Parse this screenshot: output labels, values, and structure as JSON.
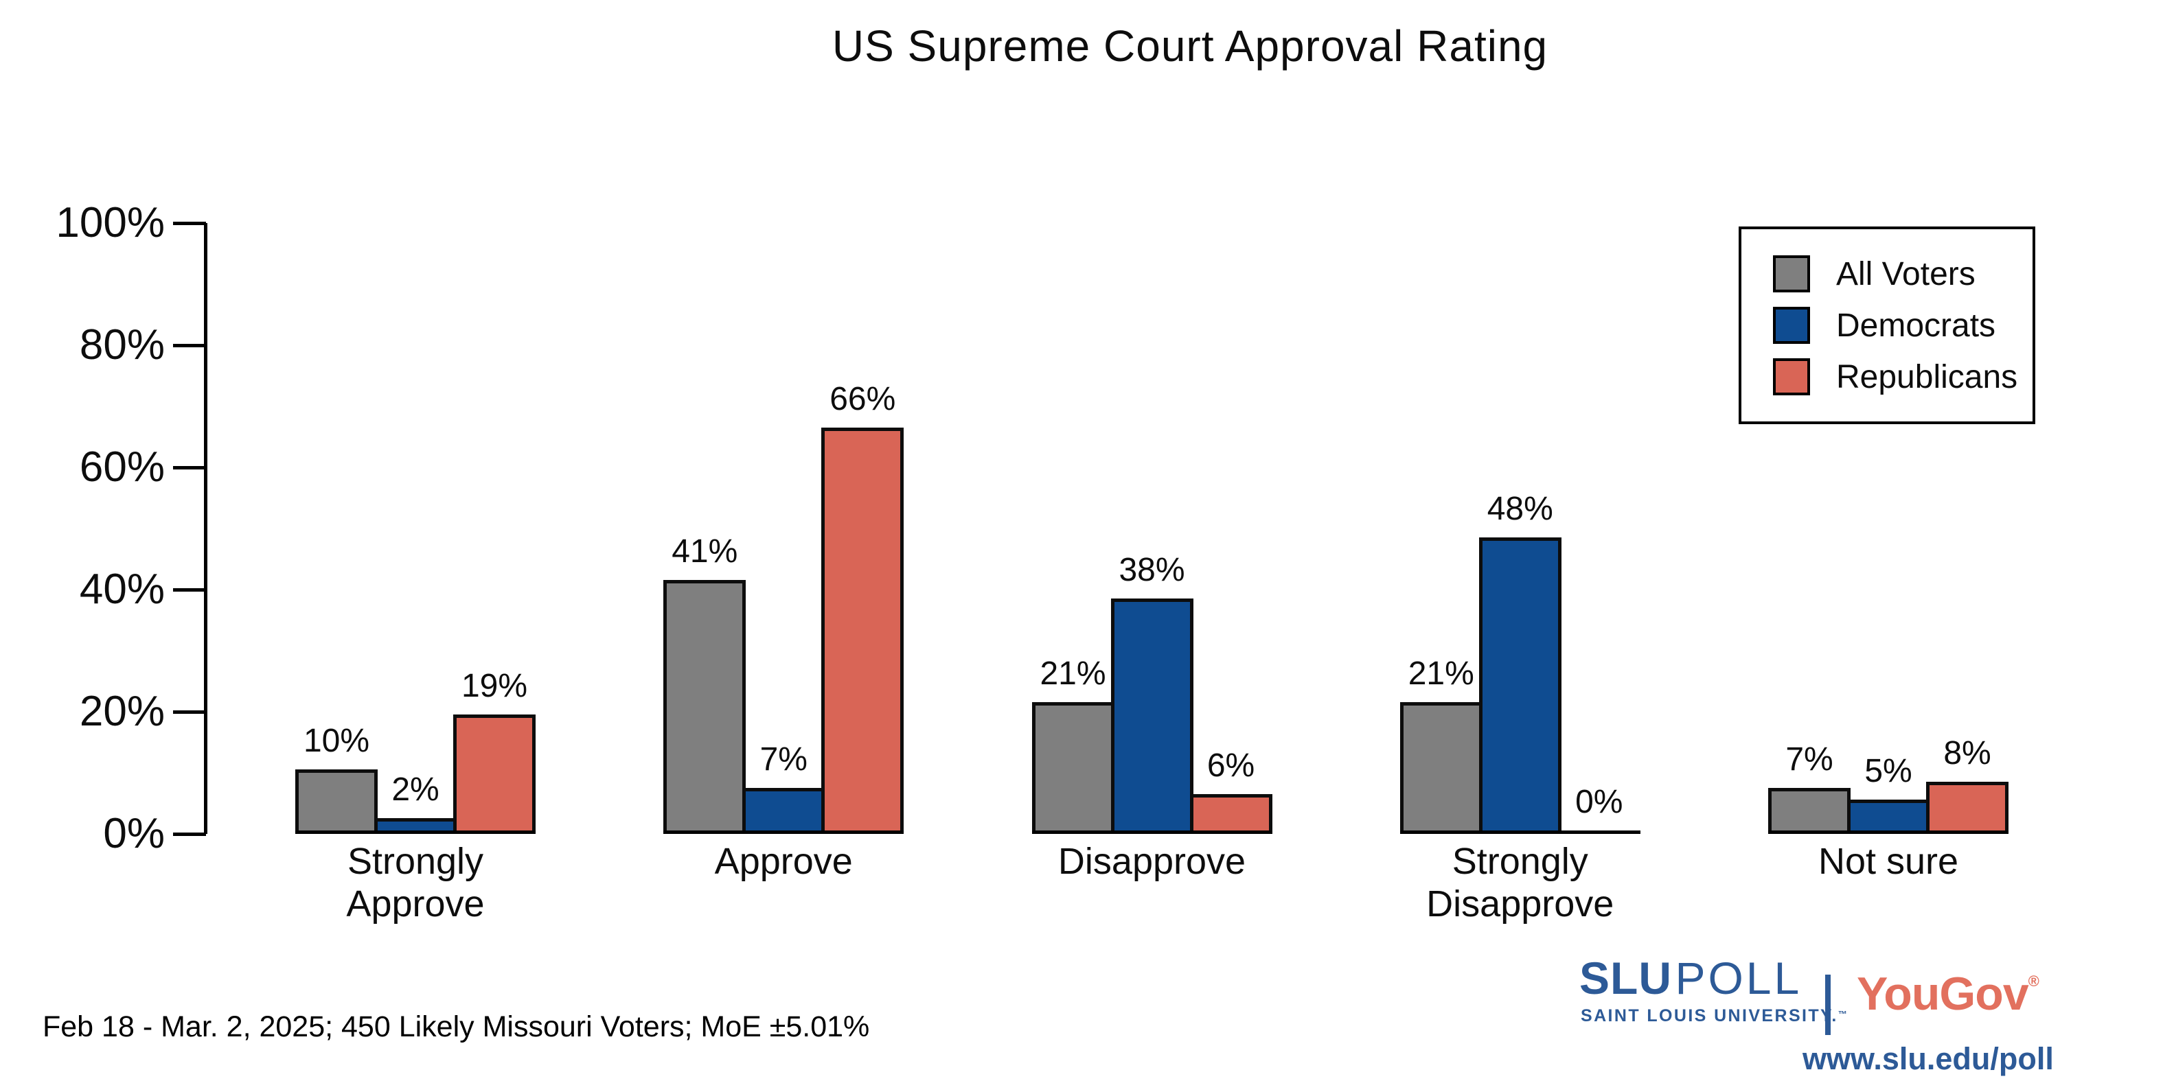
{
  "title": "US Supreme Court Approval Rating",
  "chart_data": {
    "type": "bar",
    "categories": [
      "Strongly Approve",
      "Approve",
      "Disapprove",
      "Strongly Disapprove",
      "Not sure"
    ],
    "series": [
      {
        "name": "All Voters",
        "color": "#7f7f7f",
        "values": [
          10,
          41,
          21,
          21,
          7
        ]
      },
      {
        "name": "Democrats",
        "color": "#0f4c91",
        "values": [
          2,
          7,
          38,
          48,
          5
        ]
      },
      {
        "name": "Republicans",
        "color": "#d96556",
        "values": [
          19,
          66,
          6,
          0,
          8
        ]
      }
    ],
    "value_label_suffix": "%",
    "y_ticks": [
      {
        "label": "0%",
        "pct": 0
      },
      {
        "label": "20%",
        "pct": 20
      },
      {
        "label": "40%",
        "pct": 40
      },
      {
        "label": "60%",
        "pct": 60
      },
      {
        "label": "80%",
        "pct": 80
      },
      {
        "label": "100%",
        "pct": 100
      }
    ],
    "ylim": [
      0,
      100
    ],
    "xlabel": "",
    "ylabel": "",
    "grid": false,
    "legend_position": "top-right",
    "bar_outline_color": "#0d0d0d"
  },
  "footnote": "Feb 18 - Mar. 2, 2025; 450 Likely Missouri Voters; MoE ±5.01%",
  "branding": {
    "slu": "SLU",
    "poll": "POLL",
    "slu_subtitle": "SAINT LOUIS UNIVERSITY.",
    "slu_tm": "™",
    "yougov": "YouGov",
    "yougov_reg": "®",
    "website": "www.slu.edu/poll",
    "slu_blue": "#2d5a97",
    "yougov_red": "#e2705e"
  }
}
